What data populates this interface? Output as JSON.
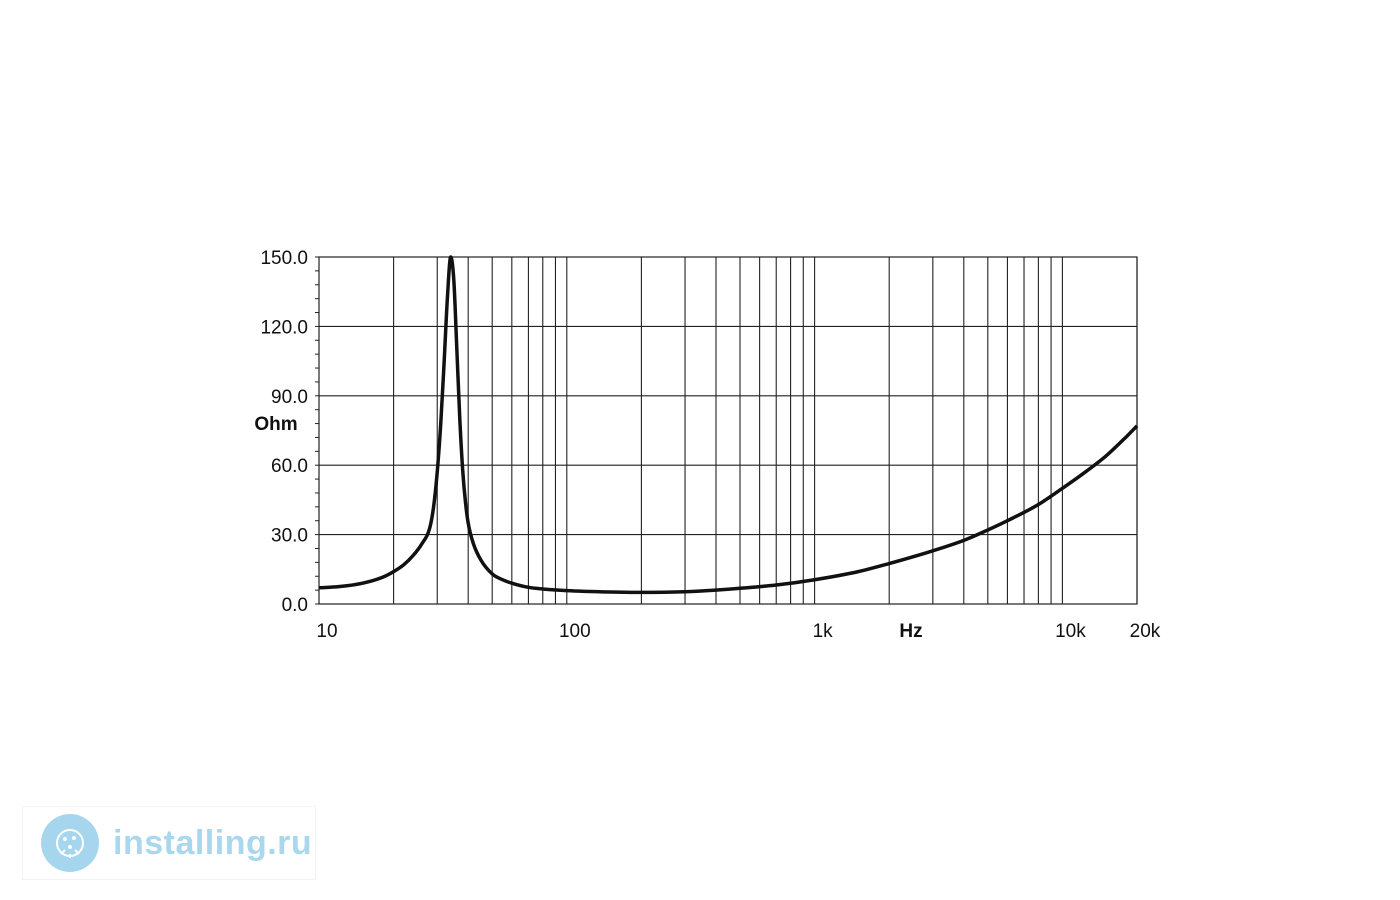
{
  "chart_data": {
    "type": "line",
    "x_scale": "log",
    "xlim": [
      10,
      20000
    ],
    "ylim": [
      0,
      150
    ],
    "grid": true,
    "y_ticks": [
      "150.0",
      "120.0",
      "90.0",
      "60.0",
      "30.0",
      "0.0"
    ],
    "y_tick_values": [
      150,
      120,
      90,
      60,
      30,
      0
    ],
    "x_ticks": [
      "10",
      "100",
      "1k",
      "10k",
      "20k"
    ],
    "x_tick_values": [
      10,
      100,
      1000,
      10000,
      20000
    ],
    "xlabel": "Hz",
    "ylabel": "Ohm",
    "series": [
      {
        "x": [
          10,
          12,
          15,
          18,
          20,
          22,
          24,
          26,
          28,
          29,
          30,
          31,
          32,
          33,
          34,
          35,
          36,
          37,
          38,
          39,
          40,
          42,
          45,
          50,
          55,
          60,
          70,
          80,
          100,
          150,
          200,
          300,
          400,
          500,
          700,
          1000,
          1500,
          2000,
          3000,
          4000,
          5000,
          6000,
          8000,
          10000,
          12000,
          15000,
          18000,
          20000
        ],
        "y": [
          7,
          7.5,
          9,
          11.5,
          14,
          17,
          21,
          26,
          33,
          42,
          57,
          78,
          105,
          133,
          150,
          140,
          110,
          80,
          58,
          44,
          35,
          26,
          19,
          13,
          10.5,
          9,
          7.2,
          6.5,
          5.8,
          5.2,
          5.0,
          5.3,
          6.0,
          6.8,
          8.2,
          10.5,
          14,
          17.5,
          23,
          27.5,
          32,
          36,
          43,
          50,
          56,
          64,
          72,
          77
        ]
      }
    ],
    "colors": {
      "curve": "#111111",
      "grid": "#222222"
    }
  },
  "watermark": {
    "text": "installing.ru",
    "icon": "installing-logo-icon"
  }
}
